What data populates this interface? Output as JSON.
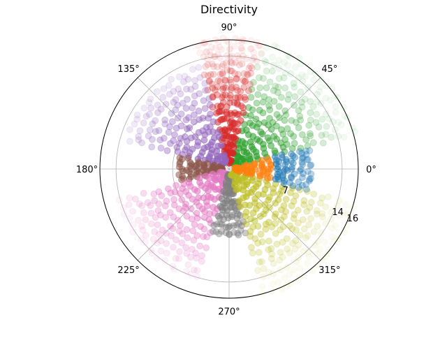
{
  "chart_data": {
    "type": "scatter",
    "projection": "polar",
    "title": "Directivity",
    "theta_tick_labels": [
      "0°",
      "45°",
      "90°",
      "135°",
      "180°",
      "225°",
      "270°",
      "315°"
    ],
    "r_tick_labels": [
      "7",
      "14",
      "16"
    ],
    "r_ticks": [
      7,
      14
    ],
    "rlim": [
      0,
      16
    ],
    "grid": true,
    "legend": "none",
    "marker": "circle, semi-transparent",
    "series": [
      {
        "color": "#2ca02c",
        "angle_range_deg": [
          15,
          75
        ],
        "r_range": [
          1,
          16
        ],
        "note_points": 5
      },
      {
        "color": "#d62728",
        "angle_range_deg": [
          75,
          105
        ],
        "r_range": [
          1,
          16
        ]
      },
      {
        "color": "#9467bd",
        "angle_range_deg": [
          105,
          165
        ],
        "r_range": [
          1,
          13
        ]
      },
      {
        "color": "#8c564b",
        "angle_range_deg": [
          165,
          195
        ],
        "r_range": [
          1,
          6
        ]
      },
      {
        "color": "#e377c2",
        "angle_range_deg": [
          195,
          255
        ],
        "r_range": [
          1,
          14
        ]
      },
      {
        "color": "#7f7f7f",
        "angle_range_deg": [
          255,
          285
        ],
        "r_range": [
          1,
          8
        ]
      },
      {
        "color": "#bcbd22",
        "angle_range_deg": [
          285,
          345
        ],
        "r_range": [
          1,
          16
        ]
      },
      {
        "color": "#ff7f0e",
        "angle_range_deg": [
          345,
          15
        ],
        "r_range": [
          1,
          5
        ]
      },
      {
        "color": "#1f77b4",
        "angle_range_deg": [
          345,
          15
        ],
        "r_range": [
          6,
          10
        ]
      }
    ]
  }
}
